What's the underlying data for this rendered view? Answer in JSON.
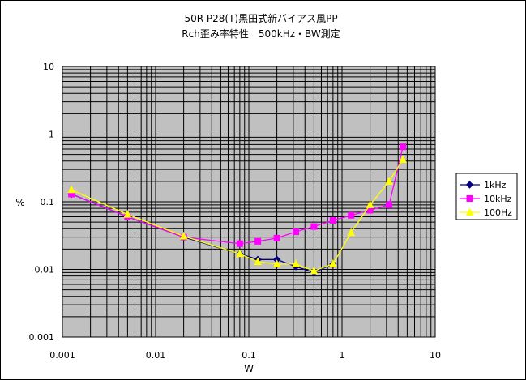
{
  "chart_data": {
    "type": "scatter",
    "title": "50R-P28(T)黒田式新バイアス風PP",
    "subtitle": "Rch歪み率特性　500kHz・BW測定",
    "xlabel": "W",
    "ylabel": "%",
    "x_scale": "log",
    "y_scale": "log",
    "xlim": [
      0.001,
      10
    ],
    "ylim": [
      0.001,
      10
    ],
    "x_ticks": [
      "0.001",
      "0.01",
      "0.1",
      "1",
      "10"
    ],
    "y_ticks": [
      "0.001",
      "0.01",
      "0.1",
      "1",
      "10"
    ],
    "grid": true,
    "legend_position": "right",
    "plot_background": "#c0c0c0",
    "series": [
      {
        "name": "1kHz",
        "color": "#000080",
        "marker": "diamond",
        "x": [
          0.00125,
          0.005,
          0.02,
          0.08,
          0.125,
          0.2,
          0.32,
          0.5,
          0.8
        ],
        "y": [
          0.13,
          0.06,
          0.03,
          0.017,
          0.014,
          0.014,
          0.011,
          0.009,
          0.012
        ]
      },
      {
        "name": "10kHz",
        "color": "#ff00ff",
        "marker": "square",
        "x": [
          0.00125,
          0.005,
          0.02,
          0.08,
          0.125,
          0.2,
          0.32,
          0.5,
          0.8,
          1.25,
          2,
          3.2,
          4.5
        ],
        "y": [
          0.13,
          0.06,
          0.03,
          0.024,
          0.026,
          0.029,
          0.036,
          0.043,
          0.053,
          0.063,
          0.075,
          0.09,
          0.65
        ]
      },
      {
        "name": "100Hz",
        "color": "#ffff00",
        "marker": "triangle",
        "x": [
          0.00125,
          0.005,
          0.02,
          0.08,
          0.125,
          0.2,
          0.32,
          0.5,
          0.8,
          1.25,
          2,
          3.2,
          4.5
        ],
        "y": [
          0.15,
          0.065,
          0.031,
          0.017,
          0.013,
          0.012,
          0.012,
          0.0095,
          0.012,
          0.035,
          0.09,
          0.2,
          0.42
        ]
      }
    ]
  }
}
